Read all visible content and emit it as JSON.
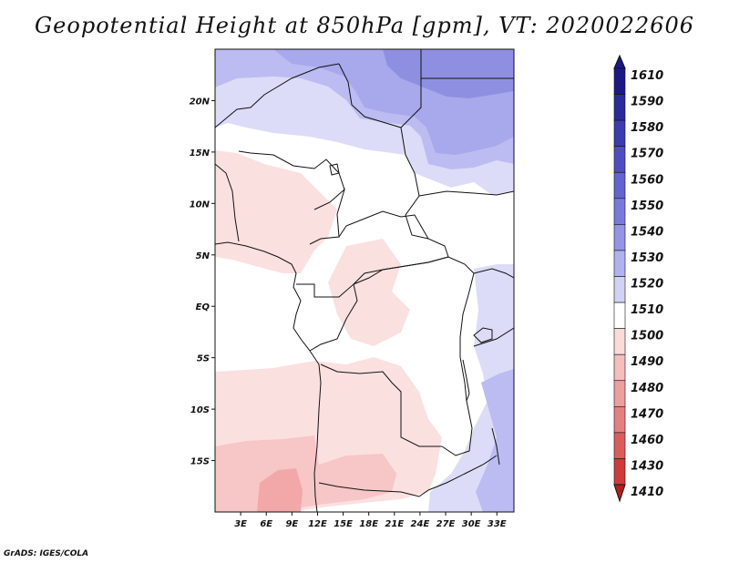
{
  "title": "Geopotential Height at 850hPa [gpm], VT: 2020022606",
  "footer": "GrADS: IGES/COLA",
  "map": {
    "lon_range": [
      0,
      35
    ],
    "lat_range": [
      -20,
      25
    ],
    "lon_ticks": [
      "3E",
      "6E",
      "9E",
      "12E",
      "15E",
      "18E",
      "21E",
      "24E",
      "27E",
      "30E",
      "33E"
    ],
    "lat_ticks": [
      "20N",
      "15N",
      "10N",
      "5N",
      "EQ",
      "5S",
      "10S",
      "15S"
    ]
  },
  "colorbar": {
    "levels": [
      "1610",
      "1590",
      "1580",
      "1570",
      "1560",
      "1550",
      "1540",
      "1530",
      "1520",
      "1510",
      "1500",
      "1490",
      "1480",
      "1470",
      "1460",
      "1430",
      "1410"
    ],
    "colors": [
      "#1c1888",
      "#2a2a9e",
      "#3b3bb2",
      "#4e4ec4",
      "#6363d2",
      "#7a7ade",
      "#9494e8",
      "#b2b2f0",
      "#d2d2f6",
      "#ffffff",
      "#fbdada",
      "#f6bdbd",
      "#ef9e9e",
      "#e68080",
      "#dc5c5c",
      "#cf3a3a",
      "#b41e1e"
    ]
  },
  "fields": [
    {
      "value": "1520",
      "color": "#dcdcf8"
    },
    {
      "value": "1530",
      "color": "#bcbcf2"
    },
    {
      "value": "1540",
      "color": "#a8a8ec"
    },
    {
      "value": "1500",
      "color": "#fbe0e0"
    },
    {
      "value": "1490",
      "color": "#f7c6c6"
    },
    {
      "value": "1480",
      "color": "#f2a8a8"
    }
  ]
}
